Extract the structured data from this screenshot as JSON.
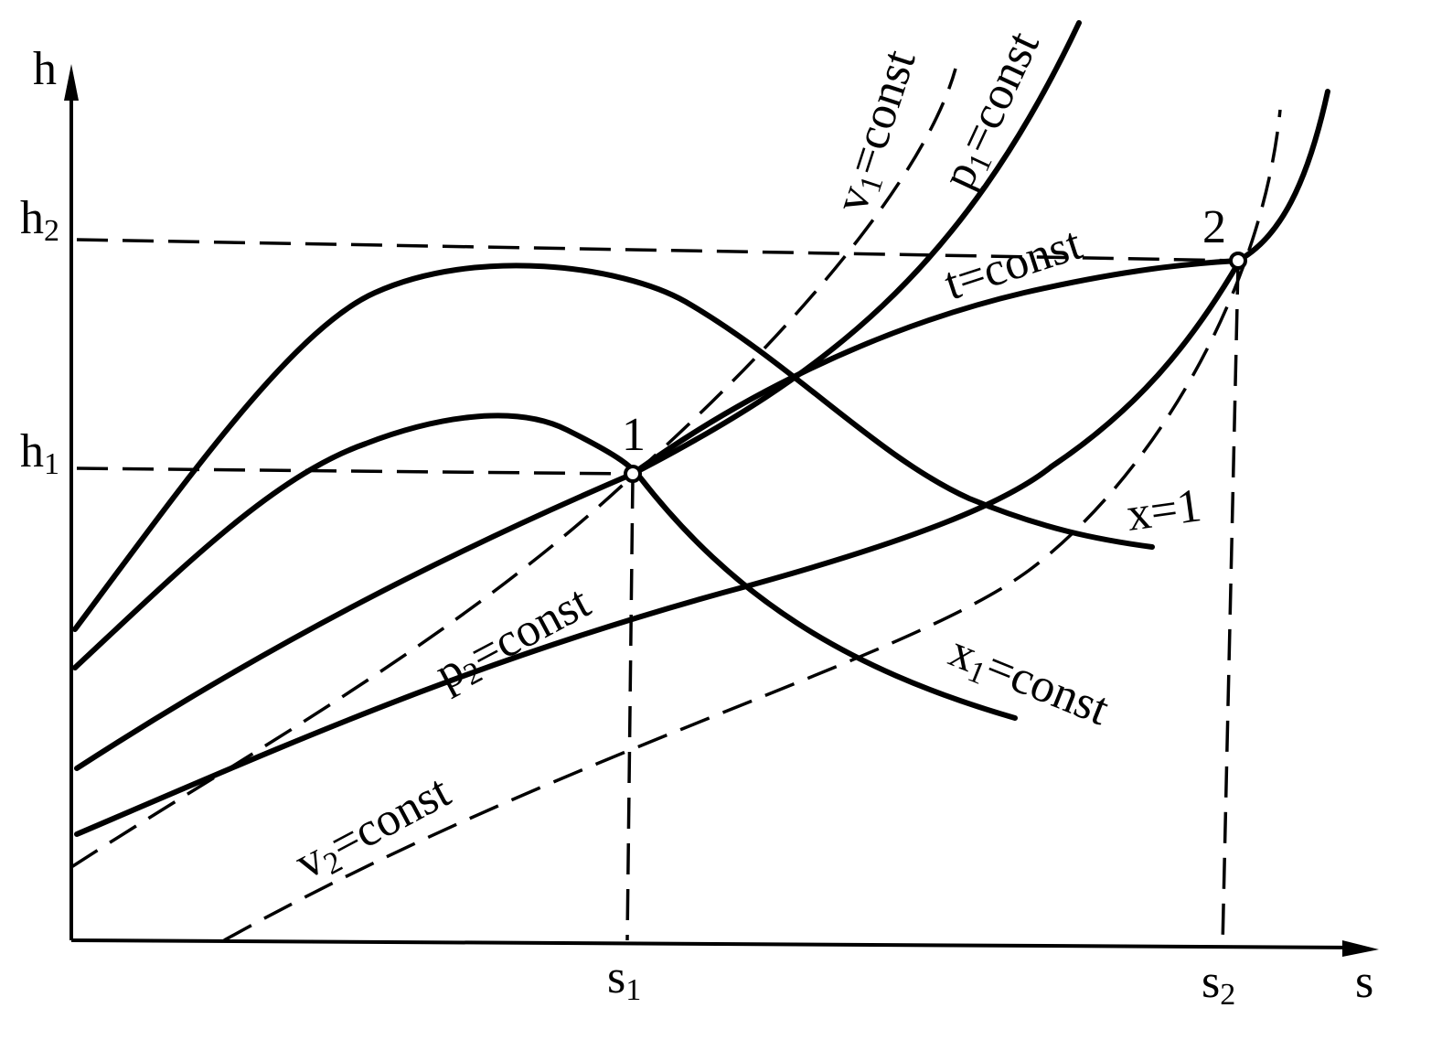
{
  "axes": {
    "y_label": "h",
    "x_label": "s"
  },
  "ticks": {
    "h2": {
      "base": "h",
      "sub": "2"
    },
    "h1": {
      "base": "h",
      "sub": "1"
    },
    "s1": {
      "base": "s",
      "sub": "1"
    },
    "s2": {
      "base": "s",
      "sub": "2"
    }
  },
  "points": {
    "p1": "1",
    "p2": "2"
  },
  "curves": {
    "v1": {
      "base": "v",
      "sub": "1",
      "rest": "=const"
    },
    "p1": {
      "base": "p",
      "sub": "1",
      "rest": "=const"
    },
    "t": {
      "text": "t=const"
    },
    "x1sat": {
      "text": "x=1"
    },
    "x1": {
      "base": "x",
      "sub": "1",
      "rest": "=const"
    },
    "p2": {
      "base": "p",
      "sub": "2",
      "rest": "=const"
    },
    "v2": {
      "base": "v",
      "sub": "2",
      "rest": "=const"
    }
  },
  "colors": {
    "ink": "#000000",
    "paper": "#ffffff"
  }
}
